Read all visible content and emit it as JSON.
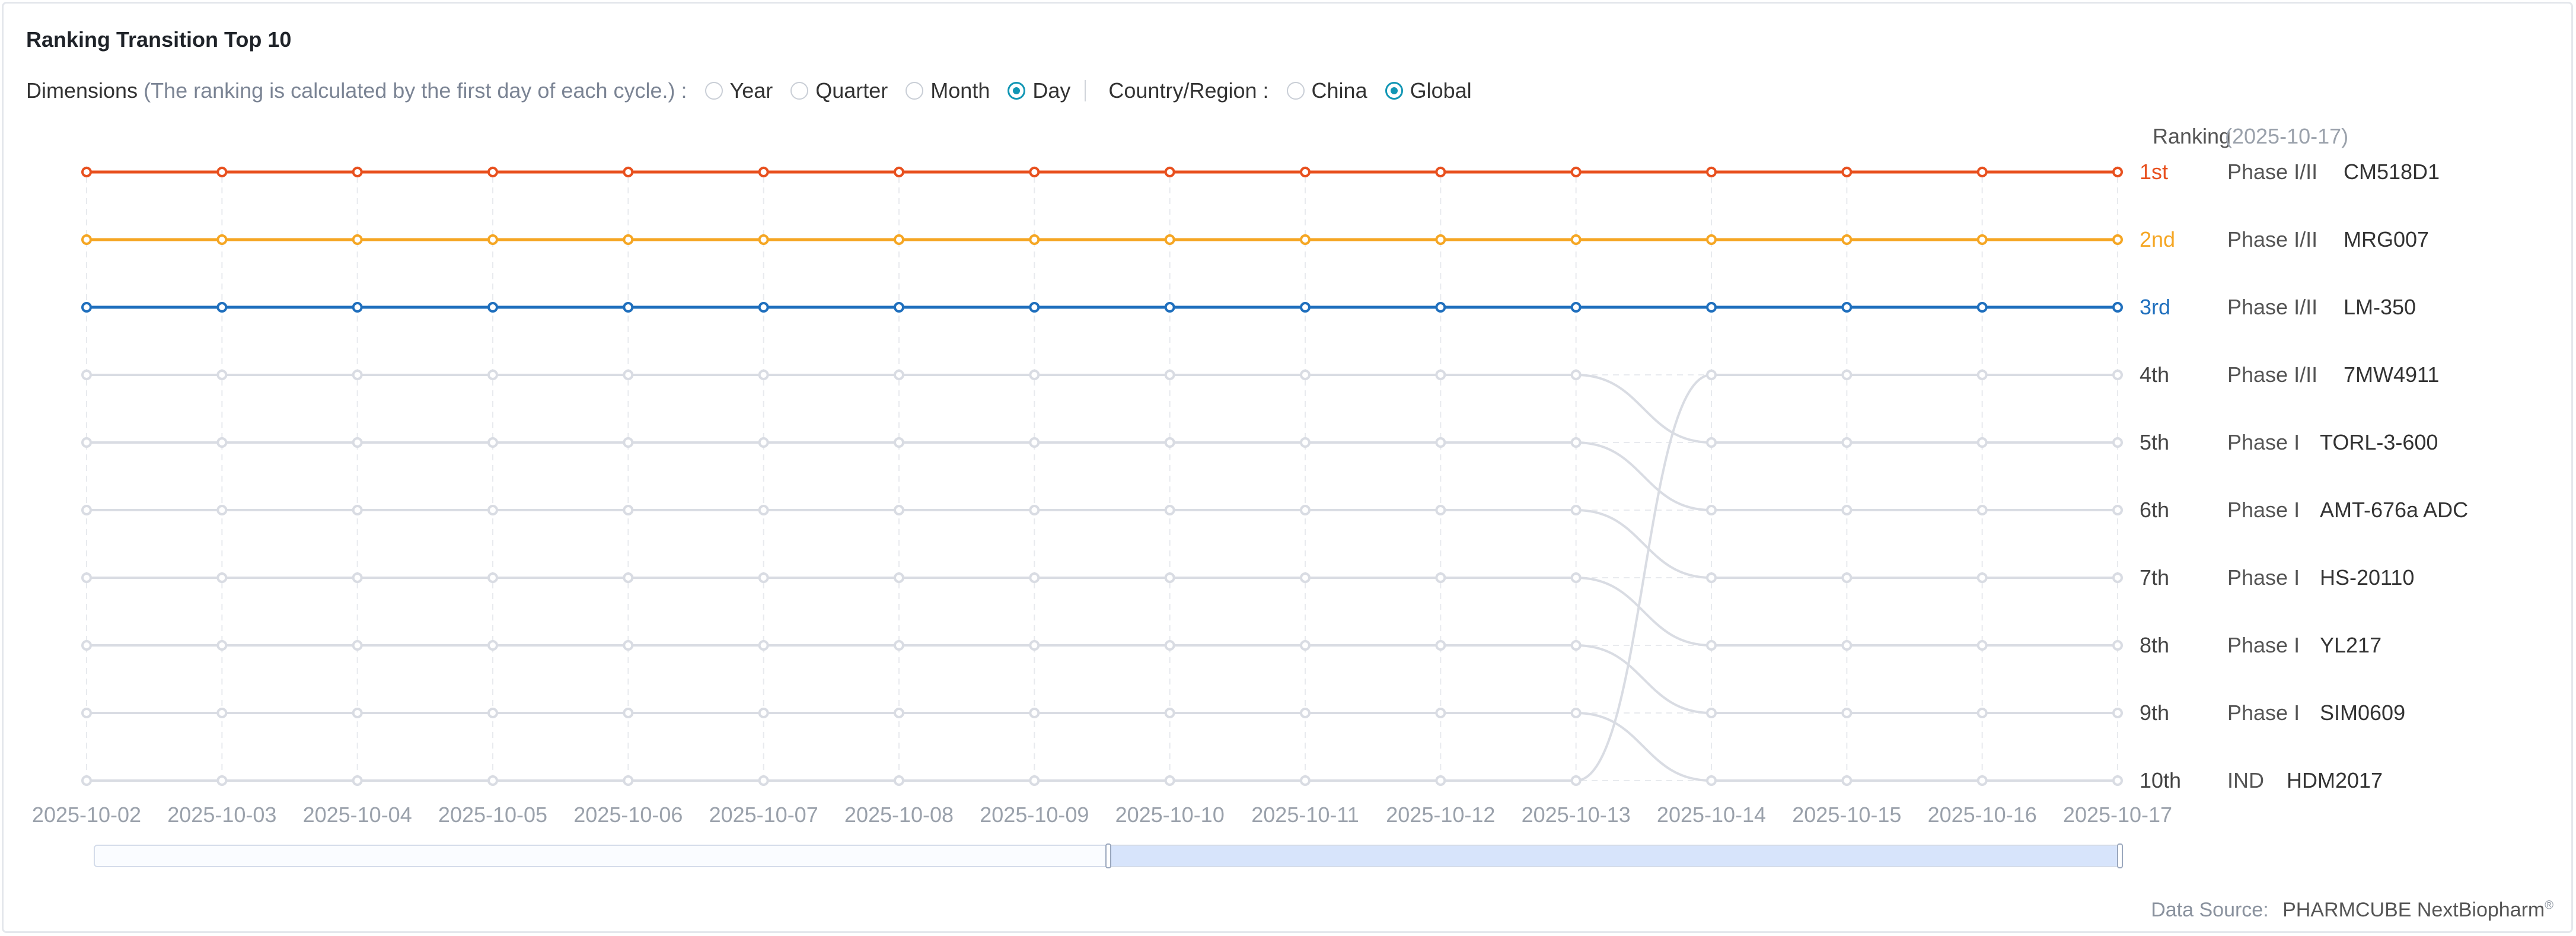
{
  "title": "Ranking Transition Top 10",
  "filters": {
    "dimensions_label": "Dimensions",
    "dimensions_hint": "(The ranking is calculated by the first day of each cycle.) :",
    "dimension_options": [
      {
        "label": "Year",
        "selected": false
      },
      {
        "label": "Quarter",
        "selected": false
      },
      {
        "label": "Month",
        "selected": false
      },
      {
        "label": "Day",
        "selected": true
      }
    ],
    "region_label": "Country/Region :",
    "region_options": [
      {
        "label": "China",
        "selected": false
      },
      {
        "label": "Global",
        "selected": true
      }
    ]
  },
  "source": {
    "label": "Data Source:",
    "brand": "PHARMCUBE NextBiopharm",
    "mark": "®"
  },
  "colors": {
    "accent": "#1196b4",
    "first": "#e8501e",
    "second": "#f5a623",
    "third": "#1f6fbd",
    "rest": "#d9dce3",
    "grid": "#e8eaee",
    "axis_text": "#9aa1ab",
    "slider_fill": "#d7e4fb"
  },
  "chart_data": {
    "type": "line",
    "title": "Ranking Transition Top 10",
    "xlabel": "",
    "ylabel": "Ranking",
    "ranking_date": "(2025-10-17)",
    "x": [
      "2025-10-02",
      "2025-10-03",
      "2025-10-04",
      "2025-10-05",
      "2025-10-06",
      "2025-10-07",
      "2025-10-08",
      "2025-10-09",
      "2025-10-10",
      "2025-10-11",
      "2025-10-12",
      "2025-10-13",
      "2025-10-14",
      "2025-10-15",
      "2025-10-16",
      "2025-10-17"
    ],
    "rank_labels": [
      "1st",
      "2nd",
      "3rd",
      "4th",
      "5th",
      "6th",
      "7th",
      "8th",
      "9th",
      "10th"
    ],
    "ylim": [
      1,
      10
    ],
    "y_inverted": true,
    "grid": true,
    "series": [
      {
        "name": "CM518D1",
        "phase": "Phase I/II",
        "color": "#e8501e",
        "ranks": [
          1,
          1,
          1,
          1,
          1,
          1,
          1,
          1,
          1,
          1,
          1,
          1,
          1,
          1,
          1,
          1
        ]
      },
      {
        "name": "MRG007",
        "phase": "Phase I/II",
        "color": "#f5a623",
        "ranks": [
          2,
          2,
          2,
          2,
          2,
          2,
          2,
          2,
          2,
          2,
          2,
          2,
          2,
          2,
          2,
          2
        ]
      },
      {
        "name": "LM-350",
        "phase": "Phase I/II",
        "color": "#1f6fbd",
        "ranks": [
          3,
          3,
          3,
          3,
          3,
          3,
          3,
          3,
          3,
          3,
          3,
          3,
          3,
          3,
          3,
          3
        ]
      },
      {
        "name": "7MW4911",
        "phase": "Phase I/II",
        "color": "#d9dce3",
        "ranks": [
          10,
          10,
          10,
          10,
          10,
          10,
          10,
          10,
          10,
          10,
          10,
          10,
          4,
          4,
          4,
          4
        ]
      },
      {
        "name": "TORL-3-600",
        "phase": "Phase I",
        "color": "#d9dce3",
        "ranks": [
          4,
          4,
          4,
          4,
          4,
          4,
          4,
          4,
          4,
          4,
          4,
          4,
          5,
          5,
          5,
          5
        ]
      },
      {
        "name": "AMT-676a ADC",
        "phase": "Phase I",
        "color": "#d9dce3",
        "ranks": [
          5,
          5,
          5,
          5,
          5,
          5,
          5,
          5,
          5,
          5,
          5,
          5,
          6,
          6,
          6,
          6
        ]
      },
      {
        "name": "HS-20110",
        "phase": "Phase I",
        "color": "#d9dce3",
        "ranks": [
          6,
          6,
          6,
          6,
          6,
          6,
          6,
          6,
          6,
          6,
          6,
          6,
          7,
          7,
          7,
          7
        ]
      },
      {
        "name": "YL217",
        "phase": "Phase I",
        "color": "#d9dce3",
        "ranks": [
          7,
          7,
          7,
          7,
          7,
          7,
          7,
          7,
          7,
          7,
          7,
          7,
          8,
          8,
          8,
          8
        ]
      },
      {
        "name": "SIM0609",
        "phase": "Phase I",
        "color": "#d9dce3",
        "ranks": [
          8,
          8,
          8,
          8,
          8,
          8,
          8,
          8,
          8,
          8,
          8,
          8,
          9,
          9,
          9,
          9
        ]
      },
      {
        "name": "HDM2017",
        "phase": "IND",
        "color": "#d9dce3",
        "ranks": [
          9,
          9,
          9,
          9,
          9,
          9,
          9,
          9,
          9,
          9,
          9,
          9,
          10,
          10,
          10,
          10
        ]
      }
    ],
    "slider": {
      "start": 0.5,
      "end": 1.0
    }
  }
}
